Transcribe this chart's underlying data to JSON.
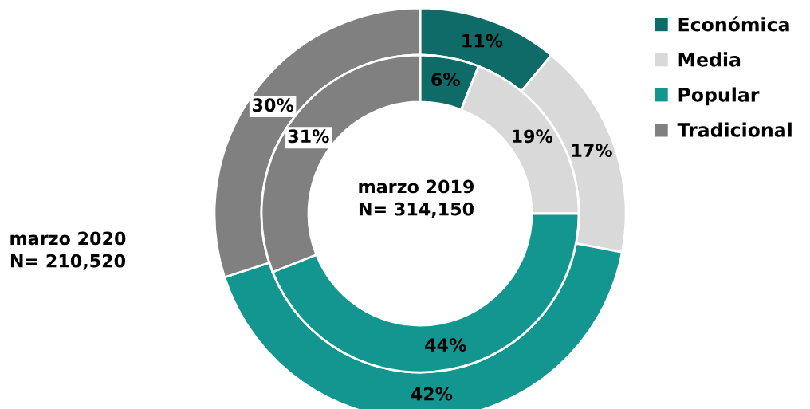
{
  "chart_data": {
    "type": "donut",
    "categories": [
      "Económica",
      "Media",
      "Popular",
      "Tradicional"
    ],
    "series": [
      {
        "colors": [
          "#0e6b68",
          "#d9d9d9",
          "#12968f",
          "#808080"
        ],
        "values": [
          11,
          17,
          42,
          30
        ],
        "value_labels": [
          "11%",
          "17%",
          "42%",
          "30%"
        ]
      },
      {
        "colors": [
          "#0e6b68",
          "#d9d9d9",
          "#12968f",
          "#808080"
        ],
        "values": [
          6,
          19,
          44,
          31
        ],
        "value_labels": [
          "6%",
          "19%",
          "44%",
          "31%"
        ]
      }
    ],
    "legend": "top right",
    "annotations": [
      "marzo 2020\nN= 210,520",
      "marzo 2019\nN= 314,150"
    ]
  }
}
